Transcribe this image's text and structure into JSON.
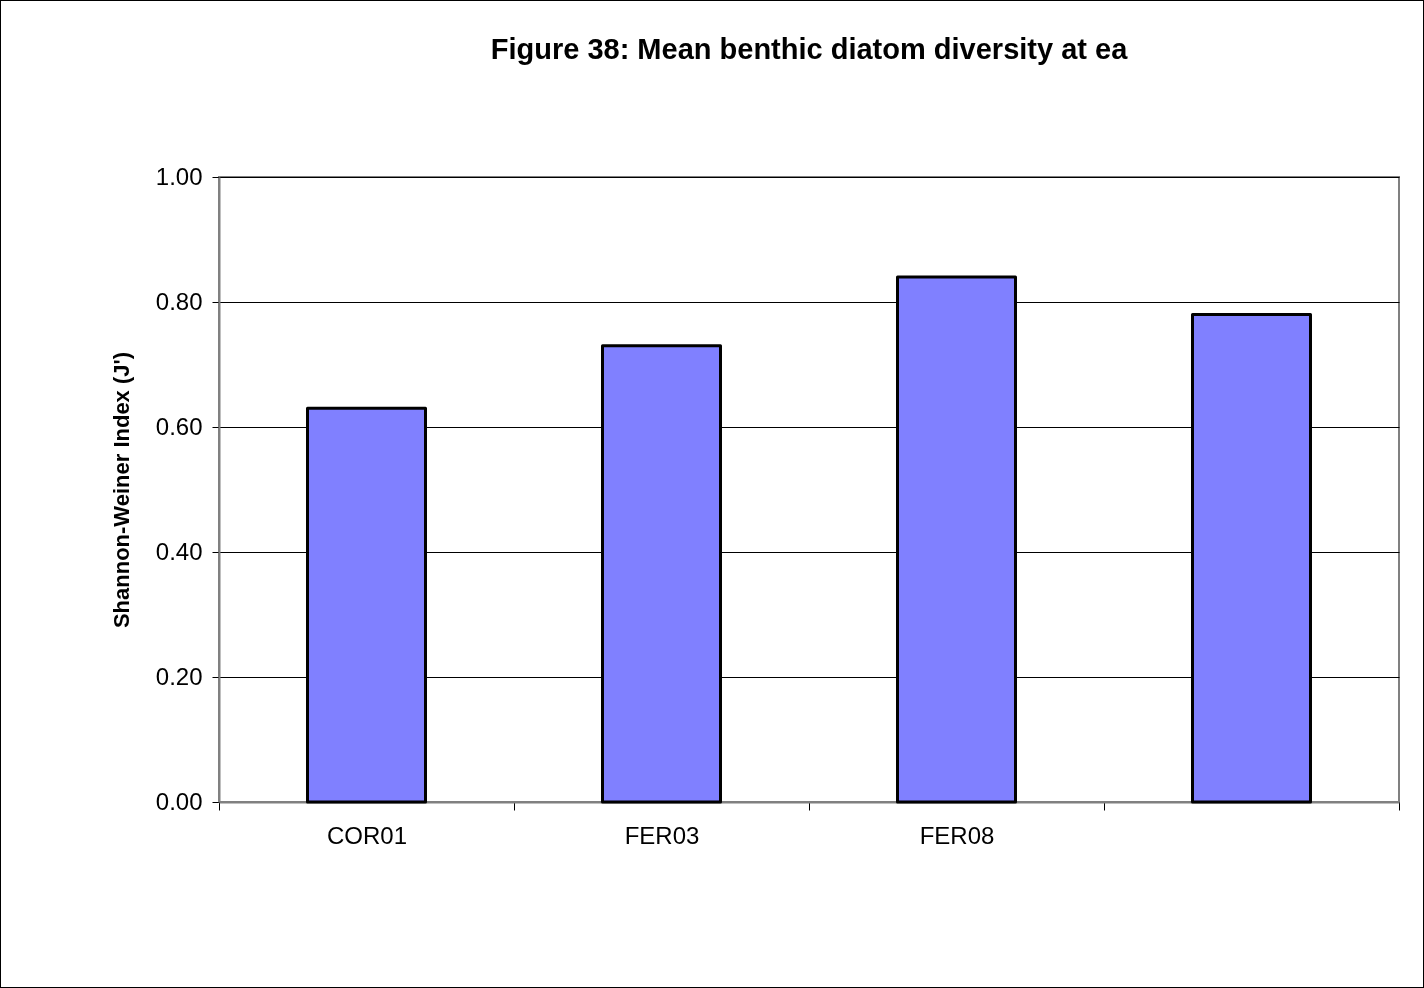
{
  "chart_data": {
    "type": "bar",
    "title": "Figure 38:  Mean benthic diatom diversity at ea",
    "ylabel": "Shannon-Weiner Index (J')",
    "categories": [
      "COR01",
      "FER03",
      "FER08",
      null
    ],
    "values": [
      0.63,
      0.73,
      0.84,
      0.78
    ],
    "color": "#8080ff",
    "ylim": [
      0,
      1
    ],
    "yticks": [
      {
        "value": 0,
        "label": "0.00"
      },
      {
        "value": 0.2,
        "label": "0.20"
      },
      {
        "value": 0.4,
        "label": "0.40"
      },
      {
        "value": 0.6,
        "label": "0.60"
      },
      {
        "value": 0.8,
        "label": "0.80"
      },
      {
        "value": 1,
        "label": "1.00"
      }
    ],
    "grid": "y"
  }
}
